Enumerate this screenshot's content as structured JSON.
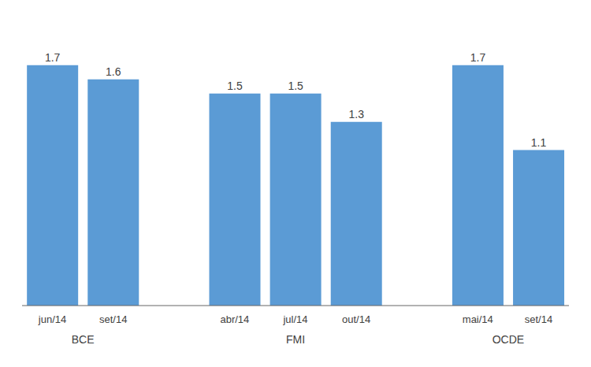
{
  "chart_data": {
    "type": "bar",
    "groups": [
      {
        "label": "BCE",
        "categories": [
          "jun/14",
          "set/14"
        ],
        "values": [
          1.7,
          1.6
        ]
      },
      {
        "label": "FMI",
        "categories": [
          "abr/14",
          "jul/14",
          "out/14"
        ],
        "values": [
          1.5,
          1.5,
          1.3
        ]
      },
      {
        "label": "OCDE",
        "categories": [
          "mai/14",
          "set/14"
        ],
        "values": [
          1.7,
          1.1
        ]
      }
    ],
    "color": "#5B9BD5",
    "ylim": [
      0,
      1.95
    ],
    "data_labels": true,
    "tick_labels": "x",
    "grid": false
  }
}
